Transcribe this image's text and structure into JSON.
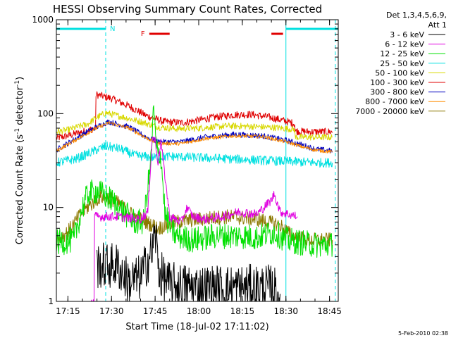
{
  "chart_data": {
    "type": "line",
    "title": "HESSI Observing Summary Count Rates, Corrected",
    "xlabel": "Start Time (18-Jul-02 17:11:02)",
    "ylabel": "Corrected Count Rate (s⁻¹ detector⁻¹)",
    "ylabel_main": "Corrected Count Rate (s",
    "ylabel_sup1": "-1",
    "ylabel_mid": " detector",
    "ylabel_sup2": "-1",
    "ylabel_end": ")",
    "y_scale": "log",
    "ylim": [
      1,
      1000
    ],
    "xlim": [
      "17:11:02",
      "18:48:00"
    ],
    "x_ticks": [
      "17:15",
      "17:30",
      "17:45",
      "18:00",
      "18:15",
      "18:30",
      "18:45"
    ],
    "y_ticks": [
      "1",
      "10",
      "100",
      "1000"
    ],
    "footer_date": "5-Feb-2010 02:38",
    "legend": {
      "placement": "right",
      "header": [
        "Det 1,3,4,5,6,9,",
        "Att 1"
      ],
      "entries": [
        {
          "label": "3 - 6 keV",
          "color": "#000000"
        },
        {
          "label": "6 - 12 keV",
          "color": "#e000e0"
        },
        {
          "label": "12 - 25 keV",
          "color": "#00e000"
        },
        {
          "label": "25 - 50 keV",
          "color": "#00e0e0"
        },
        {
          "label": "50 - 100 keV",
          "color": "#d8d800"
        },
        {
          "label": "100 - 300 keV",
          "color": "#e00000"
        },
        {
          "label": "300 - 800 keV",
          "color": "#0000c0"
        },
        {
          "label": "800 - 7000 keV",
          "color": "#ff8c00"
        },
        {
          "label": "7000 - 20000 keV",
          "color": "#8c7800"
        }
      ]
    },
    "markers": {
      "night": {
        "label": "N",
        "color": "#00e0e0",
        "segments": [
          [
            "17:11:02",
            "17:28:00"
          ],
          [
            "18:30:00",
            "18:48:00"
          ]
        ]
      },
      "flare": {
        "label": "F",
        "color": "#e00000",
        "segments": [
          [
            "17:43:00",
            "17:50:00"
          ],
          [
            "18:25:00",
            "18:29:00"
          ]
        ]
      }
    },
    "vlines": [
      {
        "time": "17:11:02",
        "style": "solid",
        "color": "#00e0e0"
      },
      {
        "time": "17:28:00",
        "style": "dashed",
        "color": "#00e0e0"
      },
      {
        "time": "18:30:00",
        "style": "solid",
        "color": "#00e0e0"
      },
      {
        "time": "18:47:00",
        "style": "dashed",
        "color": "#00e0e0"
      }
    ],
    "series": [
      {
        "name": "100 - 300 keV",
        "color": "#e00000",
        "noise": 0.04,
        "points": [
          [
            "17:11:02",
            55
          ],
          [
            "17:15:00",
            58
          ],
          [
            "17:23:00",
            68
          ],
          [
            "17:24:30",
            70
          ],
          [
            "17:24:40",
            160
          ],
          [
            "17:30:00",
            145
          ],
          [
            "17:36:00",
            120
          ],
          [
            "17:42:00",
            95
          ],
          [
            "17:48:00",
            82
          ],
          [
            "17:54:00",
            80
          ],
          [
            "18:00:00",
            85
          ],
          [
            "18:06:00",
            92
          ],
          [
            "18:12:00",
            97
          ],
          [
            "18:18:00",
            98
          ],
          [
            "18:24:00",
            92
          ],
          [
            "18:30:00",
            83
          ],
          [
            "18:33:00",
            78
          ],
          [
            "18:33:10",
            65
          ],
          [
            "18:38:00",
            64
          ],
          [
            "18:46:00",
            64
          ]
        ]
      },
      {
        "name": "50 - 100 keV",
        "color": "#d8d800",
        "noise": 0.035,
        "points": [
          [
            "17:11:02",
            64
          ],
          [
            "17:15:00",
            67
          ],
          [
            "17:22:00",
            78
          ],
          [
            "17:24:40",
            90
          ],
          [
            "17:28:00",
            102
          ],
          [
            "17:34:00",
            92
          ],
          [
            "17:40:00",
            82
          ],
          [
            "17:46:00",
            72
          ],
          [
            "17:52:00",
            69
          ],
          [
            "18:00:00",
            70
          ],
          [
            "18:10:00",
            74
          ],
          [
            "18:18:00",
            73
          ],
          [
            "18:26:00",
            71
          ],
          [
            "18:33:00",
            68
          ],
          [
            "18:33:10",
            56
          ],
          [
            "18:40:00",
            56
          ],
          [
            "18:46:00",
            56
          ]
        ]
      },
      {
        "name": "300 - 800 keV",
        "color": "#0000c0",
        "noise": 0.03,
        "points": [
          [
            "17:11:02",
            41
          ],
          [
            "17:18:00",
            55
          ],
          [
            "17:24:00",
            70
          ],
          [
            "17:29:00",
            82
          ],
          [
            "17:36:00",
            72
          ],
          [
            "17:42:00",
            56
          ],
          [
            "17:46:00",
            50
          ],
          [
            "17:54:00",
            50
          ],
          [
            "18:02:00",
            56
          ],
          [
            "18:12:00",
            60
          ],
          [
            "18:22:00",
            58
          ],
          [
            "18:30:00",
            52
          ],
          [
            "18:36:00",
            46
          ],
          [
            "18:40:00",
            42
          ],
          [
            "18:46:00",
            40
          ]
        ]
      },
      {
        "name": "800 - 7000 keV",
        "color": "#ff8c00",
        "noise": 0.02,
        "points": [
          [
            "17:11:02",
            40
          ],
          [
            "17:18:00",
            53
          ],
          [
            "17:24:00",
            68
          ],
          [
            "17:29:00",
            80
          ],
          [
            "17:36:00",
            70
          ],
          [
            "17:42:00",
            55
          ],
          [
            "17:46:00",
            48
          ],
          [
            "17:54:00",
            48
          ],
          [
            "18:02:00",
            54
          ],
          [
            "18:12:00",
            58
          ],
          [
            "18:22:00",
            57
          ],
          [
            "18:30:00",
            50
          ],
          [
            "18:36:00",
            44
          ],
          [
            "18:40:00",
            41
          ],
          [
            "18:46:00",
            39
          ]
        ]
      },
      {
        "name": "25 - 50 keV",
        "color": "#00e0e0",
        "noise": 0.05,
        "points": [
          [
            "17:11:02",
            30
          ],
          [
            "17:18:00",
            33
          ],
          [
            "17:24:00",
            40
          ],
          [
            "17:28:00",
            45
          ],
          [
            "17:33:00",
            42
          ],
          [
            "17:38:00",
            36
          ],
          [
            "17:44:00",
            34
          ],
          [
            "17:50:00",
            35
          ],
          [
            "18:00:00",
            34
          ],
          [
            "18:10:00",
            33
          ],
          [
            "18:20:00",
            32
          ],
          [
            "18:30:00",
            31
          ],
          [
            "18:40:00",
            30
          ],
          [
            "18:46:00",
            30
          ]
        ]
      },
      {
        "name": "7000 - 20000 keV",
        "color": "#8c7800",
        "noise": 0.08,
        "points": [
          [
            "17:11:02",
            4.5
          ],
          [
            "17:15:00",
            5.5
          ],
          [
            "17:20:00",
            9
          ],
          [
            "17:26:00",
            13
          ],
          [
            "17:30:00",
            12.5
          ],
          [
            "17:34:00",
            10
          ],
          [
            "17:38:00",
            8
          ],
          [
            "17:42:00",
            7
          ],
          [
            "17:46:00",
            6
          ],
          [
            "17:52:00",
            7
          ],
          [
            "18:00:00",
            7.5
          ],
          [
            "18:10:00",
            8
          ],
          [
            "18:20:00",
            7.5
          ],
          [
            "18:28:00",
            6.5
          ],
          [
            "18:32:00",
            5
          ],
          [
            "18:38:00",
            4.5
          ],
          [
            "18:46:00",
            4.5
          ]
        ]
      },
      {
        "name": "12 - 25 keV",
        "color": "#00e000",
        "noise": 0.14,
        "points": [
          [
            "17:11:02",
            4.2
          ],
          [
            "17:17:00",
            4.5
          ],
          [
            "17:20:00",
            10
          ],
          [
            "17:22:00",
            14
          ],
          [
            "17:25:00",
            15
          ],
          [
            "17:30:00",
            12
          ],
          [
            "17:34:00",
            9
          ],
          [
            "17:38:00",
            7
          ],
          [
            "17:41:00",
            7
          ],
          [
            "17:43:30",
            30
          ],
          [
            "17:44:30",
            115
          ],
          [
            "17:45:30",
            40
          ],
          [
            "17:47:00",
            35
          ],
          [
            "17:48:30",
            8
          ],
          [
            "17:52:00",
            5
          ],
          [
            "17:58:00",
            4.5
          ],
          [
            "18:06:00",
            5
          ],
          [
            "18:14:00",
            5
          ],
          [
            "18:20:00",
            4.8
          ],
          [
            "18:26:00",
            5.5
          ],
          [
            "18:30:00",
            4.5
          ],
          [
            "18:40:00",
            4
          ],
          [
            "18:46:00",
            4
          ]
        ]
      },
      {
        "name": "6 - 12 keV",
        "color": "#e000e0",
        "noise": 0.05,
        "points": [
          [
            "17:23:00",
            1
          ],
          [
            "17:24:00",
            1
          ],
          [
            "17:24:10",
            8
          ],
          [
            "17:32:00",
            8
          ],
          [
            "17:40:00",
            7.5
          ],
          [
            "17:42:30",
            9
          ],
          [
            "17:44:00",
            55
          ],
          [
            "17:45:00",
            52
          ],
          [
            "17:46:00",
            30
          ],
          [
            "17:47:00",
            50
          ],
          [
            "17:48:30",
            20
          ],
          [
            "17:50:00",
            8
          ],
          [
            "17:54:00",
            7
          ],
          [
            "17:56:00",
            10
          ],
          [
            "17:58:00",
            8
          ],
          [
            "18:02:00",
            7.5
          ],
          [
            "18:08:00",
            8
          ],
          [
            "18:14:00",
            9
          ],
          [
            "18:20:00",
            8.5
          ],
          [
            "18:25:00",
            12
          ],
          [
            "18:26:00",
            14
          ],
          [
            "18:28:00",
            9
          ],
          [
            "18:34:00",
            8
          ],
          [
            "18:34:10",
            null
          ]
        ]
      },
      {
        "name": "3 - 6 keV",
        "color": "#000000",
        "noise": 0.25,
        "points": [
          [
            "17:25:00",
            2.4
          ],
          [
            "17:32:00",
            2.4
          ],
          [
            "17:36:00",
            1.6
          ],
          [
            "17:40:00",
            1.8
          ],
          [
            "17:44:00",
            3.5
          ],
          [
            "17:45:00",
            5.5
          ],
          [
            "17:46:30",
            2
          ],
          [
            "17:50:00",
            1.5
          ],
          [
            "18:00:00",
            1.4
          ],
          [
            "18:15:00",
            1.4
          ],
          [
            "18:25:00",
            1.4
          ],
          [
            "18:28:00",
            1.2
          ]
        ]
      }
    ]
  }
}
